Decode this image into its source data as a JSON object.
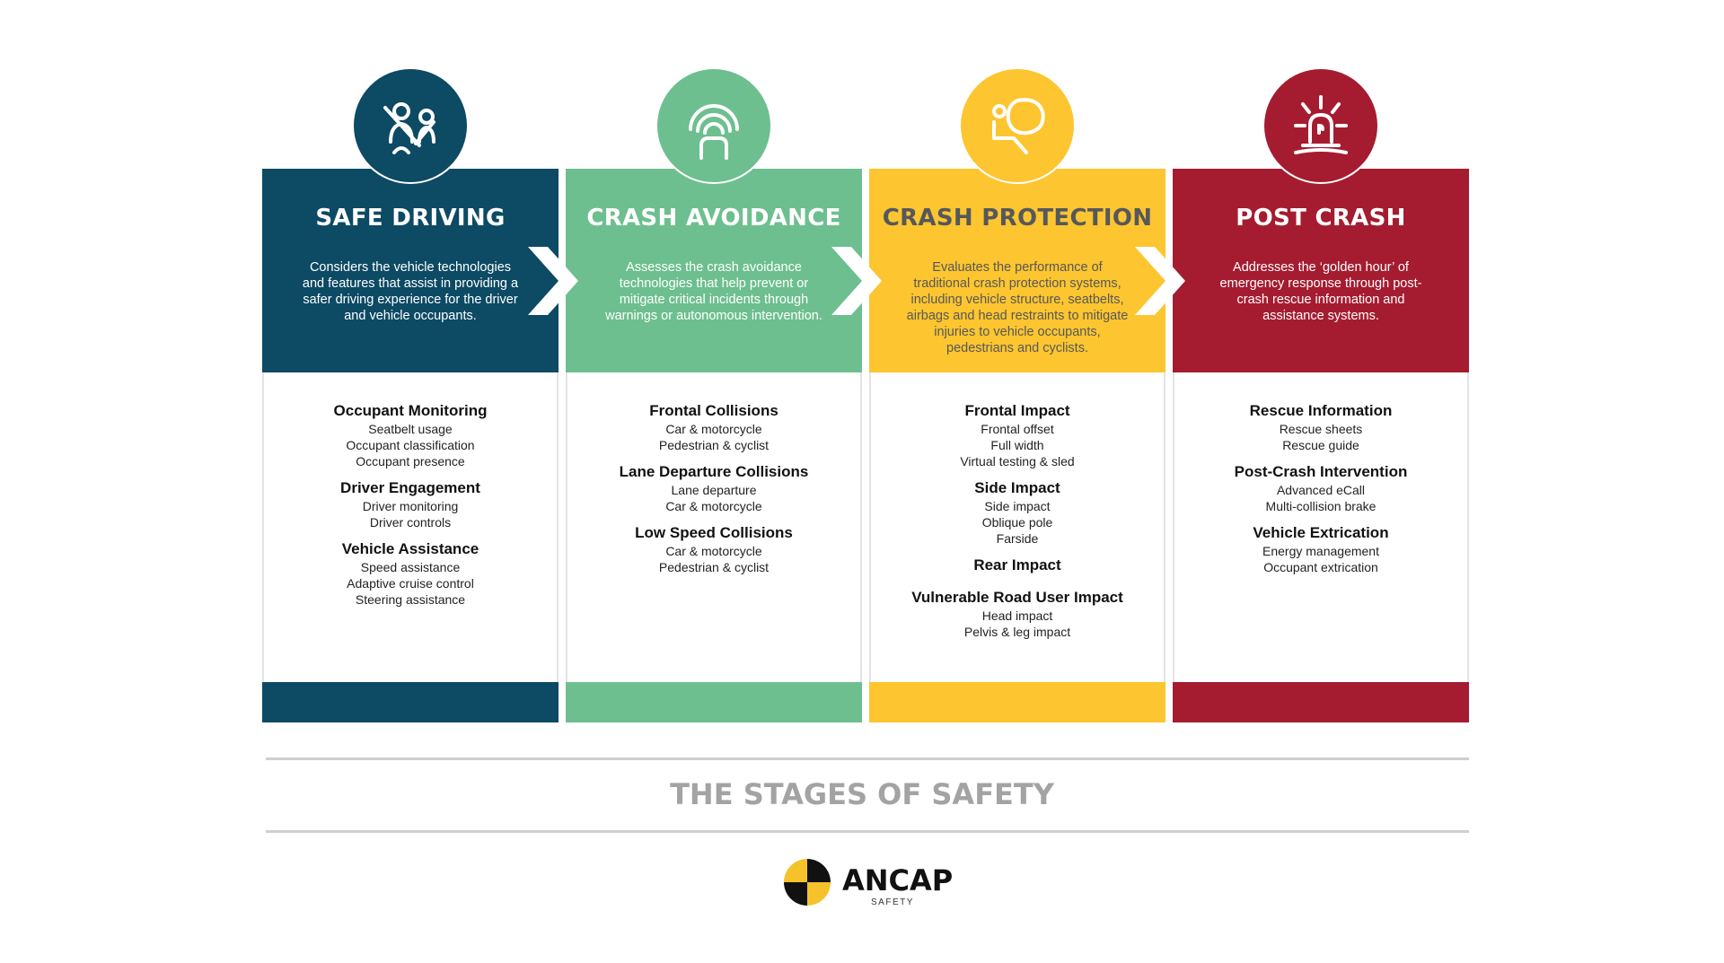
{
  "colors": {
    "safe_driving": "#0d4a64",
    "crash_avoidance": "#6dbf8f",
    "crash_protection": "#fdc52f",
    "post_crash": "#a51c30"
  },
  "stages": [
    {
      "title": "SAFE DRIVING",
      "icon": "occupant-seatbelt-icon",
      "description": "Considers the vehicle technologies and features that assist in providing a safer driving experience for the driver and vehicle occupants.",
      "groups": [
        {
          "heading": "Occupant Monitoring",
          "items": [
            "Seatbelt usage",
            "Occupant classification",
            "Occupant presence"
          ]
        },
        {
          "heading": "Driver Engagement",
          "items": [
            "Driver monitoring",
            "Driver controls"
          ]
        },
        {
          "heading": "Vehicle Assistance",
          "items": [
            "Speed assistance",
            "Adaptive cruise control",
            "Steering assistance"
          ]
        }
      ]
    },
    {
      "title": "CRASH AVOIDANCE",
      "icon": "car-sensor-icon",
      "description": "Assesses the crash avoidance technologies that help prevent or mitigate critical incidents through warnings or autonomous intervention.",
      "groups": [
        {
          "heading": "Frontal Collisions",
          "items": [
            "Car & motorcycle",
            "Pedestrian & cyclist"
          ]
        },
        {
          "heading": "Lane Departure Collisions",
          "items": [
            "Lane departure",
            "Car & motorcycle"
          ]
        },
        {
          "heading": "Low Speed Collisions",
          "items": [
            "Car & motorcycle",
            "Pedestrian & cyclist"
          ]
        }
      ]
    },
    {
      "title": "CRASH PROTECTION",
      "icon": "airbag-icon",
      "description": "Evaluates the performance of traditional crash protection systems, including vehicle structure, seatbelts, airbags and head restraints to mitigate injuries to vehicle occupants, pedestrians and cyclists.",
      "groups": [
        {
          "heading": "Frontal Impact",
          "items": [
            "Frontal offset",
            "Full width",
            "Virtual testing & sled"
          ]
        },
        {
          "heading": "Side Impact",
          "items": [
            "Side impact",
            "Oblique pole",
            "Farside"
          ]
        },
        {
          "heading": "Rear Impact",
          "items": []
        },
        {
          "heading": "Vulnerable Road User Impact",
          "items": [
            "Head impact",
            "Pelvis & leg impact"
          ]
        }
      ]
    },
    {
      "title": "POST CRASH",
      "icon": "emergency-beacon-icon",
      "description": "Addresses the ‘golden hour’ of emergency response through post-crash rescue information and assistance systems.",
      "groups": [
        {
          "heading": "Rescue Information",
          "items": [
            "Rescue sheets",
            "Rescue guide"
          ]
        },
        {
          "heading": "Post-Crash Intervention",
          "items": [
            "Advanced eCall",
            "Multi-collision brake"
          ]
        },
        {
          "heading": "Vehicle Extrication",
          "items": [
            "Energy management",
            "Occupant extrication"
          ]
        }
      ]
    }
  ],
  "footer": {
    "title": "THE STAGES OF SAFETY",
    "logo_text": "ANCAP",
    "logo_sub": "SAFETY"
  }
}
